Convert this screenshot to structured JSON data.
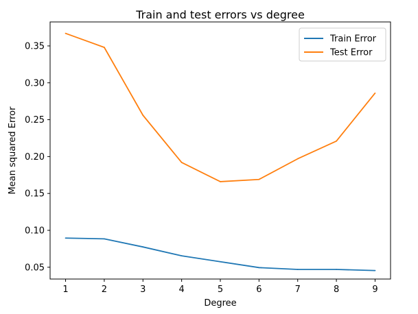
{
  "chart_data": {
    "type": "line",
    "title": "Train and test errors vs degree",
    "xlabel": "Degree",
    "ylabel": "Mean squared Error",
    "x": [
      1,
      2,
      3,
      4,
      5,
      6,
      7,
      8,
      9
    ],
    "xlim": [
      0.6,
      9.4
    ],
    "ylim": [
      0.034,
      0.3825
    ],
    "xticks": [
      1,
      2,
      3,
      4,
      5,
      6,
      7,
      8,
      9
    ],
    "yticks": [
      0.05,
      0.1,
      0.15,
      0.2,
      0.25,
      0.3,
      0.35
    ],
    "ytick_labels": [
      "0.05",
      "0.10",
      "0.15",
      "0.20",
      "0.25",
      "0.30",
      "0.35"
    ],
    "grid": false,
    "legend_position": "top-right",
    "series": [
      {
        "name": "Train Error",
        "color": "#1f77b4",
        "values": [
          0.0895,
          0.0885,
          0.0775,
          0.0655,
          0.0575,
          0.0495,
          0.047,
          0.047,
          0.0455
        ]
      },
      {
        "name": "Test Error",
        "color": "#ff7f0e",
        "values": [
          0.367,
          0.348,
          0.256,
          0.192,
          0.166,
          0.169,
          0.197,
          0.221,
          0.286
        ]
      }
    ]
  }
}
